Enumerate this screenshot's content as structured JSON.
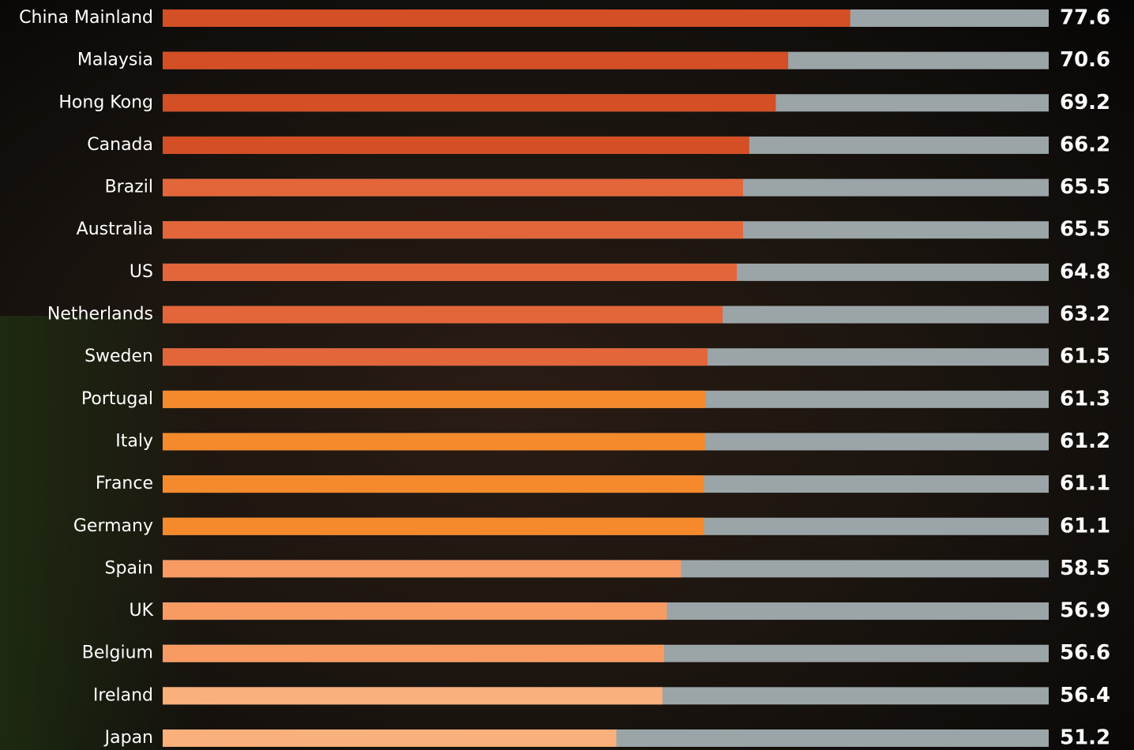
{
  "chart_data": {
    "type": "bar",
    "orientation": "horizontal",
    "categories": [
      "China Mainland",
      "Malaysia",
      "Hong Kong",
      "Canada",
      "Brazil",
      "Australia",
      "US",
      "Netherlands",
      "Sweden",
      "Portugal",
      "Italy",
      "France",
      "Germany",
      "Spain",
      "UK",
      "Belgium",
      "Ireland",
      "Japan"
    ],
    "values": [
      77.6,
      70.6,
      69.2,
      66.2,
      65.5,
      65.5,
      64.8,
      63.2,
      61.5,
      61.3,
      61.2,
      61.1,
      61.1,
      58.5,
      56.9,
      56.6,
      56.4,
      51.2
    ],
    "colors": [
      "#d44f25",
      "#d44f25",
      "#d44f25",
      "#d44f25",
      "#e3663a",
      "#e3663a",
      "#e3663a",
      "#e3663a",
      "#e3663a",
      "#f58a2c",
      "#f58a2c",
      "#f58a2c",
      "#f58a2c",
      "#f79b63",
      "#f79b63",
      "#f79b63",
      "#f9b07a",
      "#f9b07a"
    ],
    "track_color": "#9ba5a8",
    "xlim": [
      0,
      100
    ]
  }
}
